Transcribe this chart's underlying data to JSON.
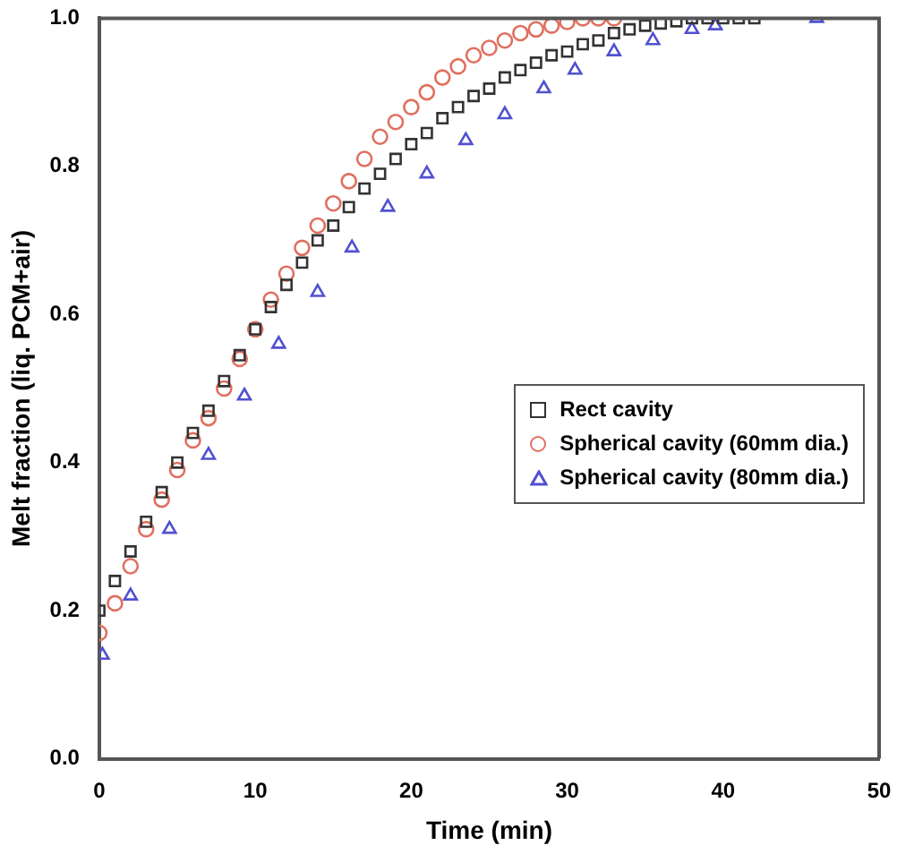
{
  "chart_data": {
    "type": "scatter",
    "xlabel": "Time (min)",
    "ylabel": "Melt fraction (liq. PCM+air)",
    "xlim": [
      0,
      50
    ],
    "ylim": [
      0,
      1
    ],
    "xticks": [
      0,
      10,
      20,
      30,
      40,
      50
    ],
    "yticks": [
      {
        "value": 0,
        "label": "0.0"
      },
      {
        "value": 0.2,
        "label": "0.2"
      },
      {
        "value": 0.4,
        "label": "0.4"
      },
      {
        "value": 0.6,
        "label": "0.6"
      },
      {
        "value": 0.8,
        "label": "0.8"
      },
      {
        "value": 1,
        "label": "1.0"
      }
    ],
    "grid": false,
    "legend": "right",
    "tick_labels": "xy",
    "series": [
      {
        "name": "Rect cavity",
        "color": "#333333",
        "marker": "square",
        "x": [
          0,
          1,
          2,
          3,
          4,
          5,
          6,
          7,
          8,
          9,
          10,
          11,
          12,
          13,
          14,
          15,
          16,
          17,
          18,
          19,
          20,
          21,
          22,
          23,
          24,
          25,
          26,
          27,
          28,
          29,
          30,
          31,
          32,
          33,
          34,
          35,
          36,
          37,
          38,
          39,
          40,
          41,
          42
        ],
        "values": [
          0.2,
          0.24,
          0.28,
          0.32,
          0.36,
          0.4,
          0.44,
          0.47,
          0.51,
          0.545,
          0.58,
          0.61,
          0.64,
          0.67,
          0.7,
          0.72,
          0.745,
          0.77,
          0.79,
          0.81,
          0.83,
          0.845,
          0.865,
          0.88,
          0.895,
          0.905,
          0.92,
          0.93,
          0.94,
          0.95,
          0.955,
          0.965,
          0.97,
          0.98,
          0.985,
          0.99,
          0.993,
          0.996,
          1,
          1,
          1,
          1,
          1
        ]
      },
      {
        "name": "Spherical cavity (60mm dia.)",
        "color": "#e07060",
        "marker": "circle",
        "x": [
          0,
          1,
          2,
          3,
          4,
          5,
          6,
          7,
          8,
          9,
          10,
          11,
          12,
          13,
          14,
          15,
          16,
          17,
          18,
          19,
          20,
          21,
          22,
          23,
          24,
          25,
          26,
          27,
          28,
          29,
          30,
          31,
          32,
          33
        ],
        "values": [
          0.17,
          0.21,
          0.26,
          0.31,
          0.35,
          0.39,
          0.43,
          0.46,
          0.5,
          0.54,
          0.58,
          0.62,
          0.655,
          0.69,
          0.72,
          0.75,
          0.78,
          0.81,
          0.84,
          0.86,
          0.88,
          0.9,
          0.92,
          0.935,
          0.95,
          0.96,
          0.97,
          0.98,
          0.985,
          0.99,
          0.995,
          1,
          1,
          1
        ]
      },
      {
        "name": "Spherical cavity (80mm dia.)",
        "color": "#5050d0",
        "marker": "triangle",
        "x": [
          0.2,
          2,
          4.5,
          7,
          9.3,
          11.5,
          14,
          16.2,
          18.5,
          21,
          23.5,
          26,
          28.5,
          30.5,
          33,
          35.5,
          38,
          39.5,
          46
        ],
        "values": [
          0.14,
          0.22,
          0.31,
          0.41,
          0.49,
          0.56,
          0.63,
          0.69,
          0.745,
          0.79,
          0.835,
          0.87,
          0.905,
          0.93,
          0.955,
          0.97,
          0.985,
          0.99,
          1
        ]
      }
    ]
  }
}
